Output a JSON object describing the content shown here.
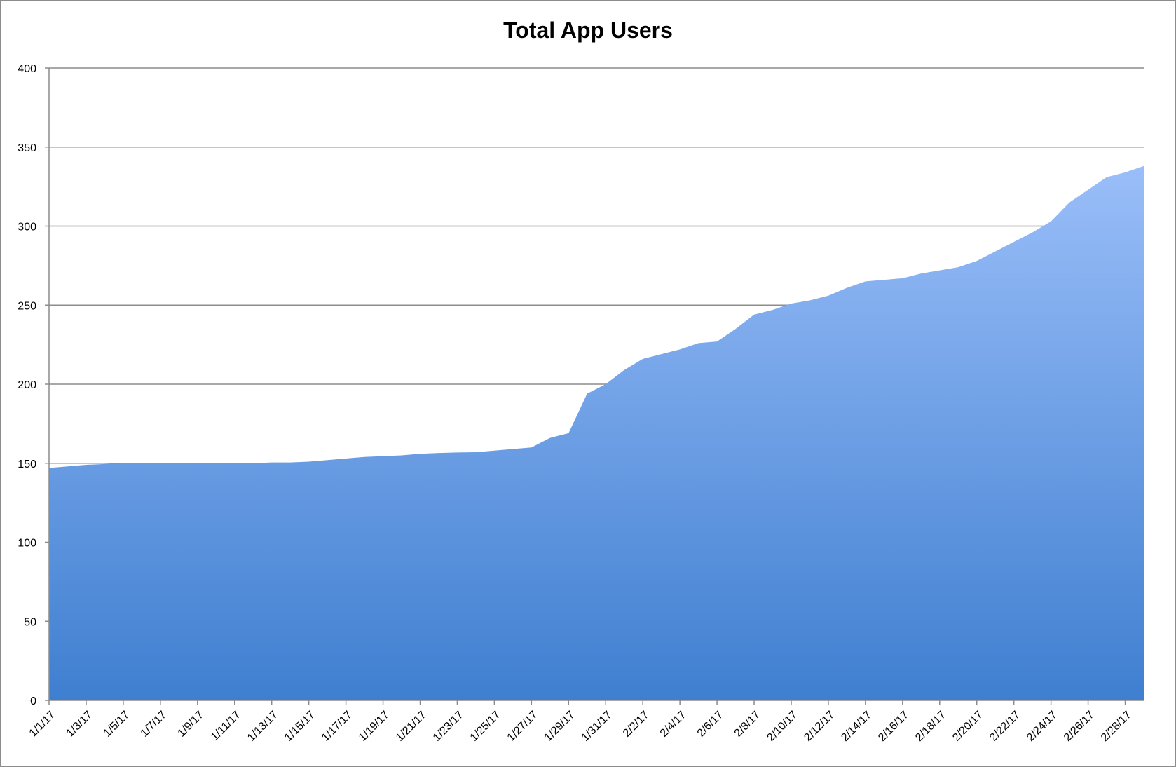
{
  "chart_data": {
    "type": "area",
    "title": "Total App Users",
    "xlabel": "",
    "ylabel": "",
    "ylim": [
      0,
      400
    ],
    "yticks": [
      0,
      50,
      100,
      150,
      200,
      250,
      300,
      350,
      400
    ],
    "grid": true,
    "legend": "none",
    "colors": {
      "fill_top": "#9ABEF9",
      "fill_bottom": "#3F7FD0",
      "grid": "#8C8C8C",
      "axis": "#8C8C8C"
    },
    "x_tick_labels": [
      "1/1/17",
      "1/3/17",
      "1/5/17",
      "1/7/17",
      "1/9/17",
      "1/11/17",
      "1/13/17",
      "1/15/17",
      "1/17/17",
      "1/19/17",
      "1/21/17",
      "1/23/17",
      "1/25/17",
      "1/27/17",
      "1/29/17",
      "1/31/17",
      "2/2/17",
      "2/4/17",
      "2/6/17",
      "2/8/17",
      "2/10/17",
      "2/12/17",
      "2/14/17",
      "2/16/17",
      "2/18/17",
      "2/20/17",
      "2/22/17",
      "2/24/17",
      "2/26/17",
      "2/28/17"
    ],
    "x": [
      "1/1/17",
      "1/2/17",
      "1/3/17",
      "1/4/17",
      "1/5/17",
      "1/6/17",
      "1/7/17",
      "1/8/17",
      "1/9/17",
      "1/10/17",
      "1/11/17",
      "1/12/17",
      "1/13/17",
      "1/14/17",
      "1/15/17",
      "1/16/17",
      "1/17/17",
      "1/18/17",
      "1/19/17",
      "1/20/17",
      "1/21/17",
      "1/22/17",
      "1/23/17",
      "1/24/17",
      "1/25/17",
      "1/26/17",
      "1/27/17",
      "1/28/17",
      "1/29/17",
      "1/30/17",
      "1/31/17",
      "2/1/17",
      "2/2/17",
      "2/3/17",
      "2/4/17",
      "2/5/17",
      "2/6/17",
      "2/7/17",
      "2/8/17",
      "2/9/17",
      "2/10/17",
      "2/11/17",
      "2/12/17",
      "2/13/17",
      "2/14/17",
      "2/15/17",
      "2/16/17",
      "2/17/17",
      "2/18/17",
      "2/19/17",
      "2/20/17",
      "2/21/17",
      "2/22/17",
      "2/23/17",
      "2/24/17",
      "2/25/17",
      "2/26/17",
      "2/27/17",
      "2/28/17",
      "3/1/17"
    ],
    "series": [
      {
        "values": [
          147,
          148,
          149,
          149.5,
          150,
          150,
          150,
          150,
          150,
          150,
          150,
          150,
          150.5,
          150.5,
          151,
          152,
          153,
          154,
          154.5,
          155,
          156,
          156.5,
          156.8,
          157,
          158,
          159,
          160,
          166,
          169,
          194,
          200,
          209,
          216,
          219,
          222,
          226,
          227,
          235,
          244,
          247,
          251,
          253,
          256,
          261,
          265,
          266,
          267,
          270,
          272,
          274,
          278,
          284,
          290,
          296,
          303,
          315,
          323,
          331,
          334,
          338
        ]
      }
    ]
  }
}
